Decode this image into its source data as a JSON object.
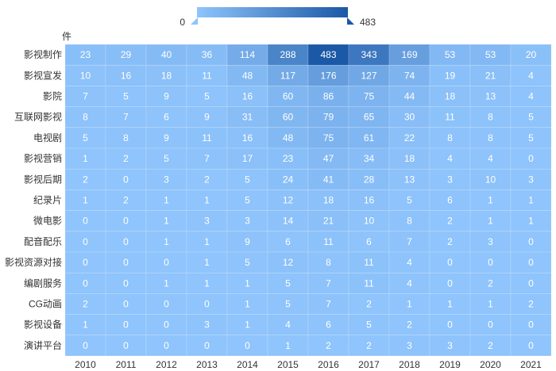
{
  "chart_data": {
    "type": "heatmap",
    "unit_label": "件",
    "x": [
      "2010",
      "2011",
      "2012",
      "2013",
      "2014",
      "2015",
      "2016",
      "2017",
      "2018",
      "2019",
      "2020",
      "2021"
    ],
    "y": [
      "影视制作",
      "影视宣发",
      "影院",
      "互联网影视",
      "电视剧",
      "影视营销",
      "影视后期",
      "纪录片",
      "微电影",
      "配音配乐",
      "影视资源对接",
      "编剧服务",
      "CG动画",
      "影视设备",
      "演讲平台"
    ],
    "values": [
      [
        23,
        29,
        40,
        36,
        114,
        288,
        483,
        343,
        169,
        53,
        53,
        20
      ],
      [
        10,
        16,
        18,
        11,
        48,
        117,
        176,
        127,
        74,
        19,
        21,
        4
      ],
      [
        7,
        5,
        9,
        5,
        16,
        60,
        86,
        75,
        44,
        18,
        13,
        4
      ],
      [
        8,
        7,
        6,
        9,
        31,
        60,
        79,
        65,
        30,
        11,
        8,
        5
      ],
      [
        5,
        8,
        9,
        11,
        16,
        48,
        75,
        61,
        22,
        8,
        8,
        5
      ],
      [
        1,
        2,
        5,
        7,
        17,
        23,
        47,
        34,
        18,
        4,
        4,
        0
      ],
      [
        2,
        0,
        3,
        2,
        5,
        24,
        41,
        28,
        13,
        3,
        10,
        3
      ],
      [
        1,
        2,
        1,
        1,
        5,
        12,
        18,
        16,
        5,
        6,
        1,
        1
      ],
      [
        0,
        0,
        1,
        3,
        3,
        14,
        21,
        10,
        8,
        2,
        1,
        1
      ],
      [
        0,
        0,
        1,
        1,
        9,
        6,
        11,
        6,
        7,
        2,
        3,
        0
      ],
      [
        0,
        0,
        0,
        1,
        5,
        12,
        8,
        11,
        4,
        0,
        0,
        0
      ],
      [
        0,
        0,
        1,
        1,
        1,
        5,
        7,
        11,
        4,
        0,
        2,
        0
      ],
      [
        2,
        0,
        0,
        0,
        1,
        5,
        7,
        2,
        1,
        1,
        1,
        2
      ],
      [
        1,
        0,
        0,
        3,
        1,
        4,
        6,
        5,
        2,
        0,
        0,
        0
      ],
      [
        0,
        0,
        0,
        0,
        0,
        1,
        2,
        2,
        3,
        3,
        2,
        0
      ]
    ],
    "visual_map": {
      "min": 0,
      "max": 483,
      "min_label": "0",
      "max_label": "483",
      "color_low": "#8fc4fc",
      "color_high": "#1b58a6"
    },
    "legend_placement": "top-center",
    "grid": false
  }
}
